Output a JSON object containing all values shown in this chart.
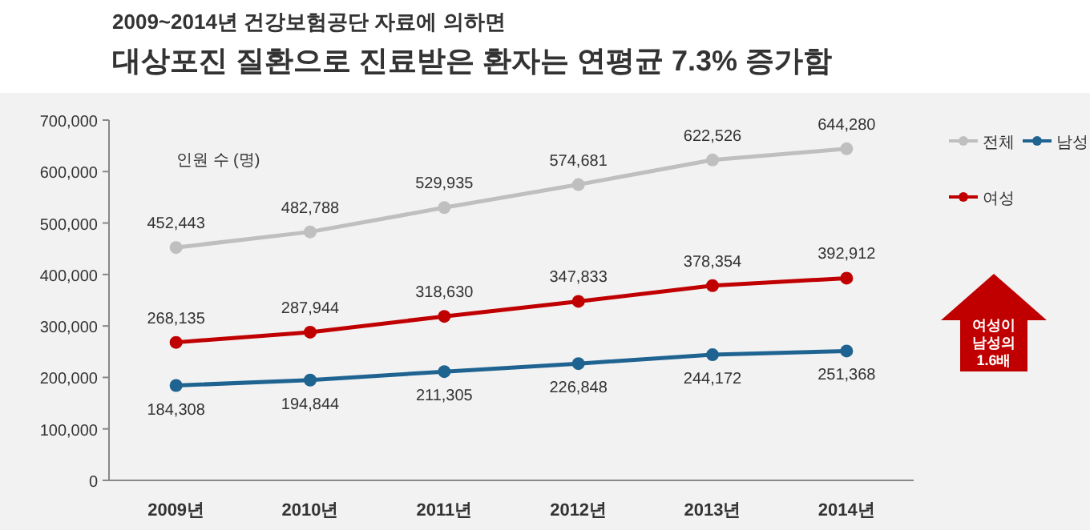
{
  "chart_data": {
    "type": "line",
    "subtitle": "2009~2014년 건강보험공단 자료에 의하면",
    "title": "대상포진 질환으로 진료받은 환자는 연평균 7.3% 증가함",
    "ylabel": "인원 수 (명)",
    "categories": [
      "2009년",
      "2010년",
      "2011년",
      "2012년",
      "2013년",
      "2014년"
    ],
    "series": [
      {
        "name": "전체",
        "color": "#bfbfbf",
        "values": [
          452443,
          482788,
          529935,
          574681,
          622526,
          644280
        ],
        "value_labels": [
          "452,443",
          "482,788",
          "529,935",
          "574,681",
          "622,526",
          "644,280"
        ]
      },
      {
        "name": "남성",
        "color": "#1f6391",
        "values": [
          184308,
          194844,
          211305,
          226848,
          244172,
          251368
        ],
        "value_labels": [
          "184,308",
          "194,844",
          "211,305",
          "226,848",
          "244,172",
          "251,368"
        ]
      },
      {
        "name": "여성",
        "color": "#c00000",
        "values": [
          268135,
          287944,
          318630,
          347833,
          378354,
          392912
        ],
        "value_labels": [
          "268,135",
          "287,944",
          "318,630",
          "347,833",
          "378,354",
          "392,912"
        ]
      }
    ],
    "ylim": [
      0,
      700000
    ],
    "yticks": [
      {
        "value": 0,
        "label": "0"
      },
      {
        "value": 100000,
        "label": "100,000"
      },
      {
        "value": 200000,
        "label": "200,000"
      },
      {
        "value": 300000,
        "label": "300,000"
      },
      {
        "value": 400000,
        "label": "400,000"
      },
      {
        "value": 500000,
        "label": "500,000"
      },
      {
        "value": 600000,
        "label": "600,000"
      },
      {
        "value": 700000,
        "label": "700,000"
      }
    ],
    "marker": "circle",
    "legend": "top right",
    "annotations": [
      "여성이 남성의 1.6배"
    ]
  }
}
